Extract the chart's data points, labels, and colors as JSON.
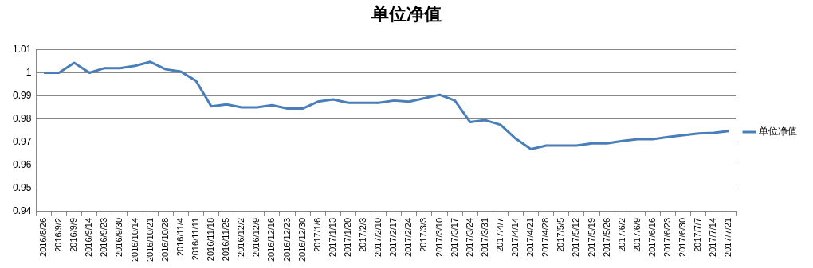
{
  "chart_data": {
    "type": "line",
    "title": "单位净值",
    "categories": [
      "2016/8/26",
      "2016/9/2",
      "2016/9/9",
      "2016/9/14",
      "2016/9/23",
      "2016/9/30",
      "2016/10/14",
      "2016/10/21",
      "2016/10/28",
      "2016/11/4",
      "2016/11/11",
      "2016/11/18",
      "2016/11/25",
      "2016/12/2",
      "2016/12/9",
      "2016/12/16",
      "2016/12/23",
      "2016/12/30",
      "2017/1/6",
      "2017/1/13",
      "2017/1/20",
      "2017/2/3",
      "2017/2/10",
      "2017/2/17",
      "2017/2/24",
      "2017/3/3",
      "2017/3/10",
      "2017/3/17",
      "2017/3/24",
      "2017/3/31",
      "2017/4/7",
      "2017/4/14",
      "2017/4/21",
      "2017/4/28",
      "2017/5/5",
      "2017/5/12",
      "2017/5/19",
      "2017/5/26",
      "2017/6/2",
      "2017/6/9",
      "2017/6/16",
      "2017/6/23",
      "2017/6/30",
      "2017/7/7",
      "2017/7/14",
      "2017/7/21"
    ],
    "series": [
      {
        "name": "单位净值",
        "color": "#4a7ebb",
        "values": [
          1.0,
          1.0,
          1.0043,
          1.0,
          1.002,
          1.002,
          1.003,
          1.0047,
          1.0015,
          1.0005,
          0.9965,
          0.9855,
          0.9863,
          0.985,
          0.985,
          0.986,
          0.9845,
          0.9845,
          0.9875,
          0.9885,
          0.987,
          0.987,
          0.987,
          0.988,
          0.9875,
          0.989,
          0.9905,
          0.988,
          0.9787,
          0.9795,
          0.9775,
          0.9715,
          0.967,
          0.9685,
          0.9685,
          0.9685,
          0.9695,
          0.9695,
          0.9705,
          0.9713,
          0.9713,
          0.9722,
          0.973,
          0.9738,
          0.974,
          0.9748
        ]
      }
    ],
    "ylim": [
      0.94,
      1.01
    ],
    "yticks": [
      0.94,
      0.95,
      0.96,
      0.97,
      0.98,
      0.99,
      1,
      1.01
    ],
    "grid": "y",
    "legend": "right",
    "marker": "none",
    "line_style": "solid"
  }
}
